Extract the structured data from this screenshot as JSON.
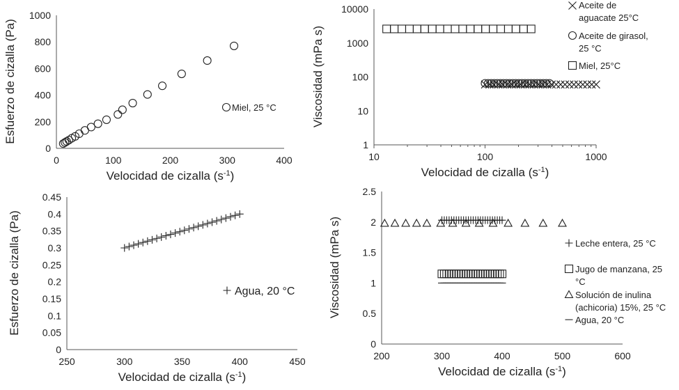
{
  "chart_data": [
    {
      "id": "c1",
      "type": "scatter",
      "xlabel": "Velocidad de cizalla (s",
      "xlabel_sup": "-1",
      "xlabel_end": ")",
      "ylabel": "Esfuerzo de cizalla (Pa)",
      "xlim": [
        0,
        400
      ],
      "ylim": [
        0,
        1000
      ],
      "xticks": [
        0,
        100,
        200,
        300,
        400
      ],
      "yticks": [
        0,
        200,
        400,
        600,
        800,
        1000
      ],
      "series": [
        {
          "name": "Miel, 25 °C",
          "marker": "circle",
          "points": [
            [
              12,
              36
            ],
            [
              15,
              44
            ],
            [
              18,
              52
            ],
            [
              22,
              62
            ],
            [
              27,
              76
            ],
            [
              33,
              90
            ],
            [
              40,
              110
            ],
            [
              50,
              135
            ],
            [
              61,
              160
            ],
            [
              73,
              185
            ],
            [
              88,
              215
            ],
            [
              108,
              255
            ],
            [
              116,
              290
            ],
            [
              134,
              340
            ],
            [
              160,
              405
            ],
            [
              186,
              470
            ],
            [
              220,
              560
            ],
            [
              265,
              660
            ],
            [
              312,
              770
            ]
          ]
        }
      ],
      "legend_position": "center-right"
    },
    {
      "id": "c2",
      "type": "scatter",
      "xscale": "log",
      "yscale": "log",
      "xlabel": "Velocidad de cizalla (s",
      "xlabel_sup": "-1",
      "xlabel_end": ")",
      "ylabel": "Viscosidad  (mPa s)",
      "xlim": [
        10,
        1000
      ],
      "ylim": [
        1,
        10000
      ],
      "xticks": [
        10,
        100,
        1000
      ],
      "yticks": [
        1,
        10,
        100,
        1000,
        10000
      ],
      "series": [
        {
          "name": "Aceite de aguacate 25°C",
          "marker": "x",
          "lines": [
            "Aceite de",
            "aguacate 25°C"
          ],
          "y": 60,
          "x_from": 100,
          "x_to": 1000,
          "n": 26
        },
        {
          "name": "Aceite de girasol, 25 °C",
          "marker": "circle",
          "lines": [
            "Aceite de girasol,",
            "25 °C"
          ],
          "y": 65,
          "x_from": 100,
          "x_to": 380,
          "n": 22
        },
        {
          "name": "Miel, 25°C",
          "marker": "square",
          "lines": [
            "Miel, 25°C"
          ],
          "y": 2600,
          "x_from": 13,
          "x_to": 260,
          "n": 20
        }
      ],
      "legend_position": "top-right"
    },
    {
      "id": "c3",
      "type": "scatter",
      "xlabel": "Velocidad de cizalla (s",
      "xlabel_sup": "-1",
      "xlabel_end": ")",
      "ylabel": "Esfuerzo de cizalla (Pa)",
      "xlim": [
        250,
        450
      ],
      "ylim": [
        0,
        0.45
      ],
      "xticks": [
        250,
        300,
        350,
        400,
        450
      ],
      "yticks": [
        "0",
        "0.05",
        "0.1",
        "0.15",
        "0.2",
        "0.25",
        "0.3",
        "0.35",
        "0.4",
        "0.45"
      ],
      "series": [
        {
          "name": "Agua, 20 °C",
          "marker": "plus",
          "x_from": 300,
          "x_to": 400,
          "y_from": 0.3,
          "y_to": 0.4,
          "n": 26
        }
      ],
      "legend_position": "center-right"
    },
    {
      "id": "c4",
      "type": "scatter",
      "xlabel": "Velocidad de cizalla (s",
      "xlabel_sup": "-1",
      "xlabel_end": ")",
      "ylabel": "Viscosidad  (mPa s)",
      "xlim": [
        200,
        600
      ],
      "ylim": [
        0,
        2.5
      ],
      "xticks": [
        200,
        300,
        400,
        500,
        600
      ],
      "yticks": [
        "0",
        "0.5",
        "1",
        "1.5",
        "2",
        "2.5"
      ],
      "series": [
        {
          "name": "Leche entera, 25 °C",
          "marker": "plus",
          "lines": [
            "Leche entera, 25 °C"
          ],
          "y": 2.03,
          "x_from": 300,
          "x_to": 400,
          "n": 26
        },
        {
          "name": "Jugo de manzana, 25 °C",
          "marker": "square",
          "lines": [
            "Jugo de manzana, 25",
            "°C"
          ],
          "y": 1.15,
          "x_from": 300,
          "x_to": 400,
          "n": 26
        },
        {
          "name": "Solución de inulina (achicoria) 15%, 25 °C",
          "marker": "triangle",
          "lines": [
            "Solución de inulina",
            "(achicoria) 15%, 25 °C"
          ],
          "points": [
            [
              205,
              1.98
            ],
            [
              222,
              1.98
            ],
            [
              240,
              1.98
            ],
            [
              258,
              1.98
            ],
            [
              275,
              1.98
            ],
            [
              298,
              1.98
            ],
            [
              318,
              1.98
            ],
            [
              340,
              1.98
            ],
            [
              362,
              1.98
            ],
            [
              385,
              1.98
            ],
            [
              410,
              1.98
            ],
            [
              438,
              1.98
            ],
            [
              468,
              1.98
            ],
            [
              500,
              1.98
            ]
          ]
        },
        {
          "name": "Agua, 20 °C",
          "marker": "dash",
          "lines": [
            "Agua, 20 °C"
          ],
          "y": 1.0,
          "x_from": 300,
          "x_to": 400,
          "n": 26
        }
      ],
      "legend_position": "right"
    }
  ]
}
